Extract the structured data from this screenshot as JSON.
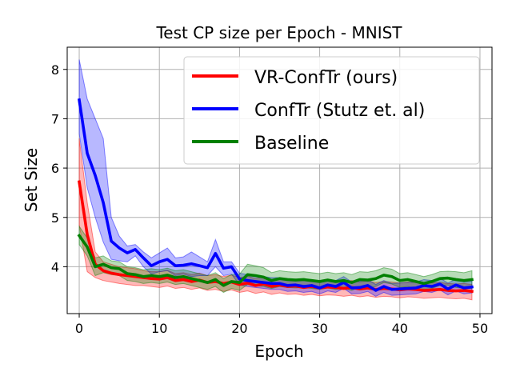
{
  "chart_data": {
    "type": "line",
    "title": "Test CP size per Epoch - MNIST",
    "xlabel": "Epoch",
    "ylabel": "Set Size",
    "xlim": [
      -1.5,
      51.5
    ],
    "ylim": [
      3.05,
      8.45
    ],
    "xticks": [
      0,
      10,
      20,
      30,
      40,
      50
    ],
    "yticks": [
      4,
      5,
      6,
      7,
      8
    ],
    "grid": true,
    "legend_position": "top-right",
    "x": [
      0,
      1,
      2,
      3,
      4,
      5,
      6,
      7,
      8,
      9,
      10,
      11,
      12,
      13,
      14,
      15,
      16,
      17,
      18,
      19,
      20,
      21,
      22,
      23,
      24,
      25,
      26,
      27,
      28,
      29,
      30,
      31,
      32,
      33,
      34,
      35,
      36,
      37,
      38,
      39,
      40,
      41,
      42,
      43,
      44,
      45,
      46,
      47,
      48,
      49
    ],
    "series": [
      {
        "name": "VR-ConfTr (ours)",
        "color": "#ff0000",
        "values": [
          5.72,
          4.65,
          4.05,
          3.92,
          3.87,
          3.84,
          3.82,
          3.8,
          3.78,
          3.76,
          3.75,
          3.78,
          3.72,
          3.74,
          3.7,
          3.73,
          3.68,
          3.7,
          3.66,
          3.69,
          3.64,
          3.67,
          3.62,
          3.65,
          3.6,
          3.63,
          3.6,
          3.61,
          3.58,
          3.6,
          3.57,
          3.59,
          3.58,
          3.56,
          3.58,
          3.55,
          3.57,
          3.54,
          3.56,
          3.55,
          3.53,
          3.55,
          3.54,
          3.52,
          3.53,
          3.54,
          3.52,
          3.51,
          3.52,
          3.5
        ],
        "upper": [
          6.6,
          5.3,
          4.3,
          4.1,
          4.05,
          4.0,
          3.98,
          3.96,
          3.92,
          3.9,
          3.9,
          3.93,
          3.86,
          3.88,
          3.84,
          3.87,
          3.82,
          3.84,
          3.8,
          3.83,
          3.78,
          3.81,
          3.76,
          3.79,
          3.74,
          3.77,
          3.74,
          3.75,
          3.72,
          3.74,
          3.71,
          3.73,
          3.72,
          3.7,
          3.72,
          3.69,
          3.71,
          3.68,
          3.7,
          3.69,
          3.67,
          3.69,
          3.68,
          3.66,
          3.67,
          3.68,
          3.66,
          3.65,
          3.66,
          3.64
        ],
        "lower": [
          4.85,
          3.9,
          3.78,
          3.72,
          3.69,
          3.66,
          3.64,
          3.62,
          3.62,
          3.6,
          3.58,
          3.61,
          3.56,
          3.58,
          3.54,
          3.57,
          3.52,
          3.54,
          3.5,
          3.53,
          3.48,
          3.51,
          3.46,
          3.49,
          3.44,
          3.47,
          3.44,
          3.45,
          3.42,
          3.44,
          3.41,
          3.43,
          3.42,
          3.4,
          3.42,
          3.39,
          3.41,
          3.38,
          3.4,
          3.39,
          3.37,
          3.39,
          3.38,
          3.36,
          3.37,
          3.38,
          3.36,
          3.35,
          3.36,
          3.33
        ]
      },
      {
        "name": "ConfTr (Stutz et. al)",
        "color": "#0000ff",
        "values": [
          7.38,
          6.3,
          5.85,
          5.3,
          4.52,
          4.38,
          4.28,
          4.35,
          4.18,
          4.02,
          4.1,
          4.15,
          4.02,
          4.03,
          4.06,
          4.02,
          3.98,
          4.27,
          3.97,
          4.0,
          3.75,
          3.72,
          3.7,
          3.68,
          3.66,
          3.66,
          3.62,
          3.63,
          3.6,
          3.62,
          3.57,
          3.63,
          3.6,
          3.68,
          3.57,
          3.58,
          3.62,
          3.52,
          3.6,
          3.54,
          3.55,
          3.56,
          3.57,
          3.62,
          3.6,
          3.65,
          3.55,
          3.63,
          3.57,
          3.59
        ],
        "upper": [
          8.2,
          7.4,
          7.0,
          6.6,
          5.0,
          4.62,
          4.42,
          4.45,
          4.3,
          4.18,
          4.28,
          4.38,
          4.18,
          4.2,
          4.3,
          4.2,
          4.1,
          4.55,
          4.1,
          4.1,
          3.87,
          3.84,
          3.82,
          3.8,
          3.78,
          3.78,
          3.74,
          3.75,
          3.72,
          3.74,
          3.69,
          3.75,
          3.72,
          3.8,
          3.69,
          3.7,
          3.74,
          3.64,
          3.72,
          3.66,
          3.67,
          3.68,
          3.69,
          3.74,
          3.72,
          3.77,
          3.67,
          3.75,
          3.69,
          3.71
        ],
        "lower": [
          6.7,
          5.6,
          5.0,
          4.5,
          4.15,
          4.12,
          4.1,
          4.22,
          4.0,
          3.85,
          3.9,
          3.92,
          3.82,
          3.85,
          3.8,
          3.82,
          3.82,
          4.0,
          3.82,
          3.85,
          3.63,
          3.6,
          3.58,
          3.56,
          3.54,
          3.54,
          3.5,
          3.51,
          3.48,
          3.5,
          3.45,
          3.51,
          3.48,
          3.56,
          3.45,
          3.46,
          3.5,
          3.4,
          3.48,
          3.42,
          3.43,
          3.44,
          3.45,
          3.5,
          3.48,
          3.53,
          3.43,
          3.51,
          3.45,
          3.47
        ]
      },
      {
        "name": "Baseline",
        "color": "#008000",
        "values": [
          4.63,
          4.4,
          4.0,
          4.05,
          3.98,
          3.96,
          3.86,
          3.84,
          3.8,
          3.82,
          3.8,
          3.83,
          3.78,
          3.8,
          3.76,
          3.72,
          3.68,
          3.74,
          3.62,
          3.7,
          3.68,
          3.84,
          3.82,
          3.79,
          3.72,
          3.76,
          3.74,
          3.73,
          3.74,
          3.72,
          3.7,
          3.73,
          3.7,
          3.72,
          3.68,
          3.74,
          3.73,
          3.76,
          3.83,
          3.8,
          3.72,
          3.74,
          3.7,
          3.66,
          3.7,
          3.76,
          3.77,
          3.74,
          3.72,
          3.74
        ],
        "upper": [
          4.82,
          4.58,
          4.18,
          4.22,
          4.12,
          4.1,
          4.0,
          3.98,
          3.94,
          3.96,
          3.94,
          3.97,
          3.92,
          3.94,
          3.9,
          3.86,
          3.82,
          3.88,
          3.76,
          3.84,
          3.85,
          4.05,
          4.02,
          3.98,
          3.88,
          3.92,
          3.9,
          3.89,
          3.9,
          3.88,
          3.86,
          3.89,
          3.86,
          3.88,
          3.84,
          3.9,
          3.89,
          3.92,
          3.98,
          3.95,
          3.86,
          3.88,
          3.84,
          3.8,
          3.84,
          3.9,
          3.91,
          3.9,
          3.88,
          3.92
        ],
        "lower": [
          4.45,
          4.22,
          3.82,
          3.88,
          3.84,
          3.82,
          3.72,
          3.7,
          3.66,
          3.68,
          3.66,
          3.69,
          3.64,
          3.66,
          3.62,
          3.58,
          3.54,
          3.6,
          3.48,
          3.56,
          3.52,
          3.64,
          3.62,
          3.6,
          3.56,
          3.6,
          3.58,
          3.57,
          3.58,
          3.56,
          3.54,
          3.57,
          3.54,
          3.56,
          3.52,
          3.58,
          3.57,
          3.6,
          3.68,
          3.65,
          3.58,
          3.6,
          3.56,
          3.52,
          3.56,
          3.62,
          3.63,
          3.58,
          3.56,
          3.56
        ]
      }
    ]
  }
}
